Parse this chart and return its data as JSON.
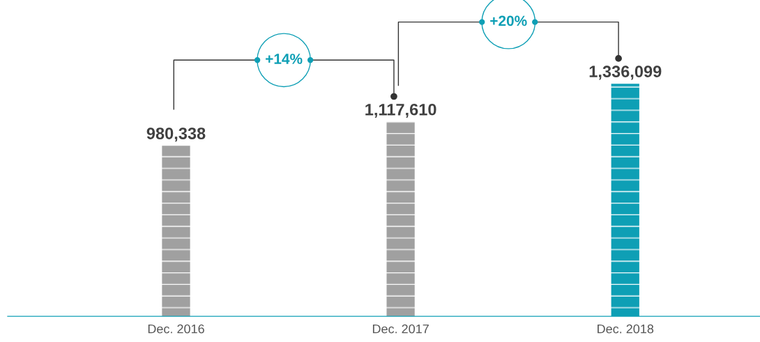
{
  "chart_data": {
    "type": "bar",
    "categories": [
      "Dec. 2016",
      "Dec. 2017",
      "Dec. 2018"
    ],
    "values": [
      980338,
      1117610,
      1336099
    ],
    "colors": [
      "#a0a0a0",
      "#a0a0a0",
      "#0e9fb5"
    ],
    "value_labels": [
      "980,338",
      "1,117,610",
      "1,336,099"
    ],
    "annotations": [
      "+14%",
      "+20%"
    ],
    "grid": false,
    "legend": false
  }
}
